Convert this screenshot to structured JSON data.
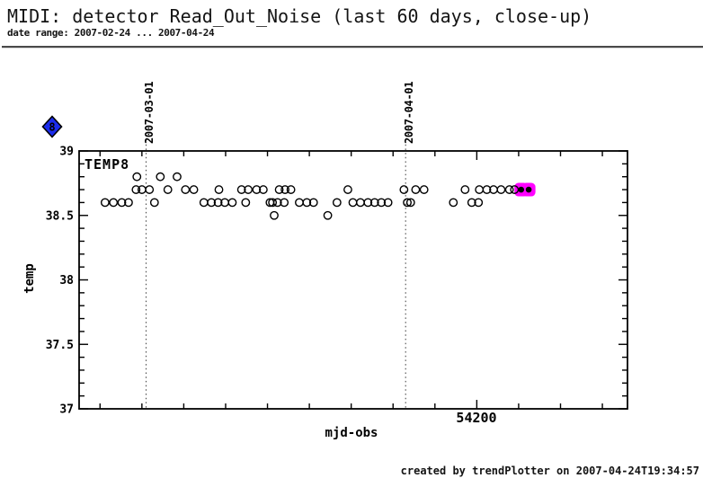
{
  "header": {
    "title": "MIDI: detector Read_Out_Noise (last 60 days, close-up)",
    "date_range": "date range: 2007-02-24 ... 2007-04-24"
  },
  "footer": {
    "credit": "created by trendPlotter on 2007-04-24T19:34:57"
  },
  "legend": {
    "marker_symbol": "8",
    "marker_shape": "diamond",
    "marker_fill": "#1b2cec",
    "marker_text_color": "#ffff00"
  },
  "chart_data": {
    "type": "scatter",
    "title": "",
    "xlabel": "mjd-obs",
    "ylabel": "temp",
    "series_label": "TEMP8",
    "marker": "open-circle",
    "grid": false,
    "xlim": [
      54152.5,
      54218
    ],
    "ylim": [
      37,
      39
    ],
    "x_ticks": {
      "minor_start": 54155,
      "minor_step": 5,
      "major": [
        {
          "value": 54200,
          "label": "54200"
        }
      ]
    },
    "y_ticks": {
      "minor_step": 0.1,
      "major": [
        {
          "value": 39,
          "label": "39"
        },
        {
          "value": 38.5,
          "label": "38.5"
        },
        {
          "value": 38,
          "label": "38"
        },
        {
          "value": 37.5,
          "label": "37.5"
        },
        {
          "value": 37,
          "label": "37"
        }
      ]
    },
    "date_lines": [
      {
        "mjd": 54160.5,
        "label": "2007-03-01"
      },
      {
        "mjd": 54191.5,
        "label": "2007-04-01"
      }
    ],
    "highlight_color": "#ff00ff",
    "points": [
      [
        54155.6,
        38.6
      ],
      [
        54156.6,
        38.6
      ],
      [
        54157.6,
        38.6
      ],
      [
        54158.4,
        38.6
      ],
      [
        54159.3,
        38.7
      ],
      [
        54159.4,
        38.8
      ],
      [
        54160,
        38.7
      ],
      [
        54160.9,
        38.7
      ],
      [
        54161.5,
        38.6
      ],
      [
        54162.2,
        38.8
      ],
      [
        54163.1,
        38.7
      ],
      [
        54164.2,
        38.8
      ],
      [
        54165.2,
        38.7
      ],
      [
        54166.2,
        38.7
      ],
      [
        54167.4,
        38.6
      ],
      [
        54168.3,
        38.6
      ],
      [
        54169.1,
        38.6
      ],
      [
        54169.2,
        38.7
      ],
      [
        54169.9,
        38.6
      ],
      [
        54170.8,
        38.6
      ],
      [
        54171.9,
        38.7
      ],
      [
        54172.4,
        38.6
      ],
      [
        54172.7,
        38.7
      ],
      [
        54173.7,
        38.7
      ],
      [
        54174.5,
        38.7
      ],
      [
        54175.3,
        38.6
      ],
      [
        54175.6,
        38.6
      ],
      [
        54175.8,
        38.5
      ],
      [
        54176.2,
        38.6
      ],
      [
        54176.4,
        38.7
      ],
      [
        54177,
        38.6
      ],
      [
        54177.1,
        38.7
      ],
      [
        54177.8,
        38.7
      ],
      [
        54178.8,
        38.6
      ],
      [
        54179.7,
        38.6
      ],
      [
        54180.5,
        38.6
      ],
      [
        54182.2,
        38.5
      ],
      [
        54183.3,
        38.6
      ],
      [
        54184.6,
        38.7
      ],
      [
        54185.2,
        38.6
      ],
      [
        54186.1,
        38.6
      ],
      [
        54187,
        38.6
      ],
      [
        54187.8,
        38.6
      ],
      [
        54188.6,
        38.6
      ],
      [
        54189.4,
        38.6
      ],
      [
        54191.3,
        38.7
      ],
      [
        54191.7,
        38.6
      ],
      [
        54192.1,
        38.6
      ],
      [
        54192.7,
        38.7
      ],
      [
        54193.7,
        38.7
      ],
      [
        54197.2,
        38.6
      ],
      [
        54198.6,
        38.7
      ],
      [
        54199.4,
        38.6
      ],
      [
        54200.2,
        38.6
      ],
      [
        54200.3,
        38.7
      ],
      [
        54201.2,
        38.7
      ],
      [
        54202,
        38.7
      ],
      [
        54202.9,
        38.7
      ],
      [
        54203.9,
        38.7
      ],
      [
        54204.5,
        38.7
      ]
    ],
    "highlighted_points": [
      [
        54205.3,
        38.7
      ],
      [
        54206.2,
        38.7
      ]
    ]
  }
}
